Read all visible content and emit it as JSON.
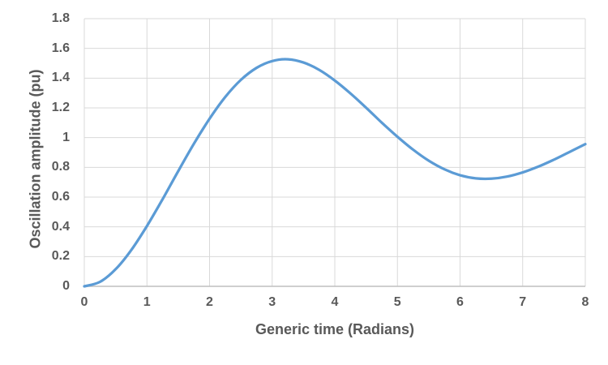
{
  "chart_data": {
    "type": "line",
    "title": "",
    "xlabel": "Generic time (Radians)",
    "ylabel": "Oscillation amplitude (pu)",
    "xlim": [
      0,
      8
    ],
    "ylim": [
      0,
      1.8
    ],
    "x_ticks": [
      "0",
      "1",
      "2",
      "3",
      "4",
      "5",
      "6",
      "7",
      "8"
    ],
    "y_ticks": [
      "0",
      "0.2",
      "0.4",
      "0.6",
      "0.8",
      "1",
      "1.2",
      "1.4",
      "1.6",
      "1.8"
    ],
    "grid": "both",
    "legend": false,
    "series": [
      {
        "name": "Oscillation amplitude",
        "color": "#5B9BD5",
        "x": [
          0,
          0.25,
          0.5,
          0.75,
          1,
          1.25,
          1.5,
          1.75,
          2,
          2.25,
          2.5,
          2.75,
          3,
          3.25,
          3.5,
          3.75,
          4,
          4.25,
          4.5,
          4.75,
          5,
          5.25,
          5.5,
          5.75,
          6,
          6.25,
          6.5,
          6.75,
          7,
          7.25,
          7.5,
          7.75,
          8
        ],
        "y": [
          0,
          0.03,
          0.115,
          0.244,
          0.406,
          0.586,
          0.775,
          0.959,
          1.127,
          1.273,
          1.388,
          1.469,
          1.515,
          1.527,
          1.505,
          1.456,
          1.384,
          1.297,
          1.201,
          1.101,
          1.006,
          0.919,
          0.845,
          0.787,
          0.747,
          0.726,
          0.724,
          0.738,
          0.766,
          0.805,
          0.852,
          0.904,
          0.956
        ]
      }
    ],
    "colors": {
      "line": "#5B9BD5",
      "gridline": "#D9D9D9",
      "axis_line": "#BFBFBF",
      "text": "#595959",
      "background": "#FFFFFF"
    }
  }
}
